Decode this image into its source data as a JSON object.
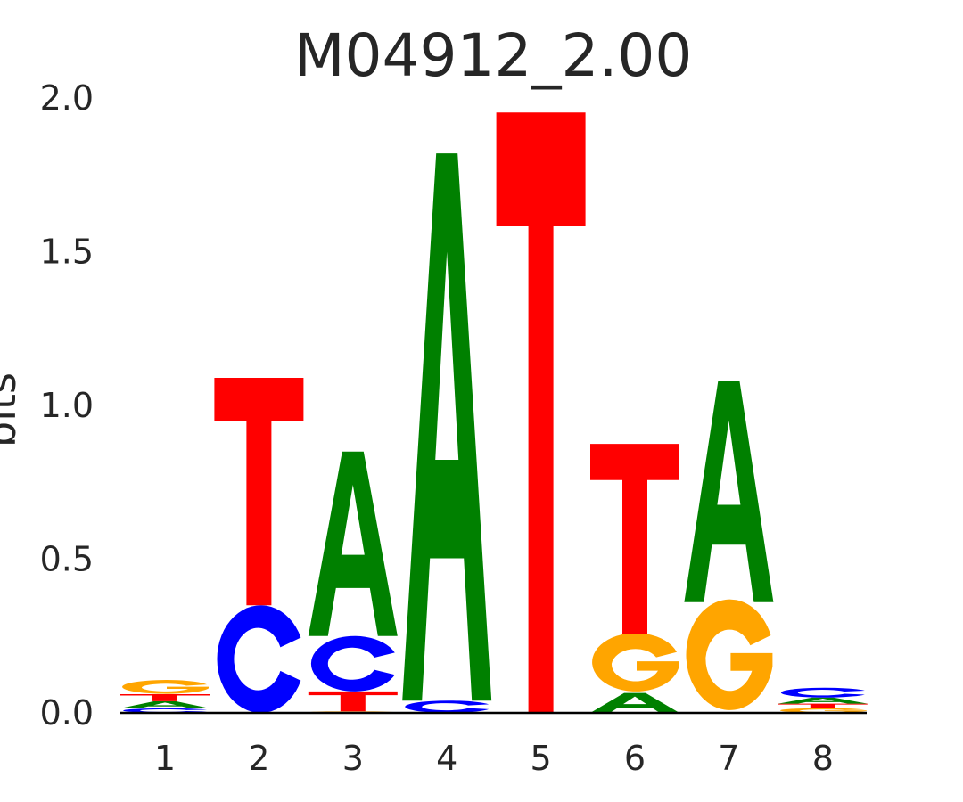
{
  "chart_data": {
    "type": "sequence-logo",
    "title": "M04912_2.00",
    "ylabel": "bits",
    "xlabel": "",
    "ylim": [
      0,
      2.0
    ],
    "yticks": [
      "0.0",
      "0.5",
      "1.0",
      "1.5",
      "2.0"
    ],
    "ytick_values": [
      0,
      0.5,
      1.0,
      1.5,
      2.0
    ],
    "categories": [
      "1",
      "2",
      "3",
      "4",
      "5",
      "6",
      "7",
      "8"
    ],
    "colors": {
      "A": "#008000",
      "C": "#0000ff",
      "G": "#ffa500",
      "T": "#ff0000"
    },
    "positions": [
      {
        "pos": "1",
        "letters": [
          {
            "base": "C",
            "bits": 0.015
          },
          {
            "base": "A",
            "bits": 0.023
          },
          {
            "base": "T",
            "bits": 0.023
          },
          {
            "base": "G",
            "bits": 0.045
          }
        ]
      },
      {
        "pos": "2",
        "letters": [
          {
            "base": "C",
            "bits": 0.35
          },
          {
            "base": "T",
            "bits": 0.74
          }
        ]
      },
      {
        "pos": "3",
        "letters": [
          {
            "base": "G",
            "bits": 0.005
          },
          {
            "base": "T",
            "bits": 0.065
          },
          {
            "base": "C",
            "bits": 0.18
          },
          {
            "base": "A",
            "bits": 0.6
          }
        ]
      },
      {
        "pos": "4",
        "letters": [
          {
            "base": "C",
            "bits": 0.04
          },
          {
            "base": "A",
            "bits": 1.78
          }
        ]
      },
      {
        "pos": "5",
        "letters": [
          {
            "base": "G",
            "bits": 0.003
          },
          {
            "base": "T",
            "bits": 1.95
          }
        ]
      },
      {
        "pos": "6",
        "letters": [
          {
            "base": "A",
            "bits": 0.065
          },
          {
            "base": "G",
            "bits": 0.19
          },
          {
            "base": "T",
            "bits": 0.62
          }
        ]
      },
      {
        "pos": "7",
        "letters": [
          {
            "base": "G",
            "bits": 0.36
          },
          {
            "base": "A",
            "bits": 0.72
          }
        ]
      },
      {
        "pos": "8",
        "letters": [
          {
            "base": "G",
            "bits": 0.015
          },
          {
            "base": "T",
            "bits": 0.015
          },
          {
            "base": "A",
            "bits": 0.02
          },
          {
            "base": "C",
            "bits": 0.032
          }
        ]
      }
    ]
  }
}
